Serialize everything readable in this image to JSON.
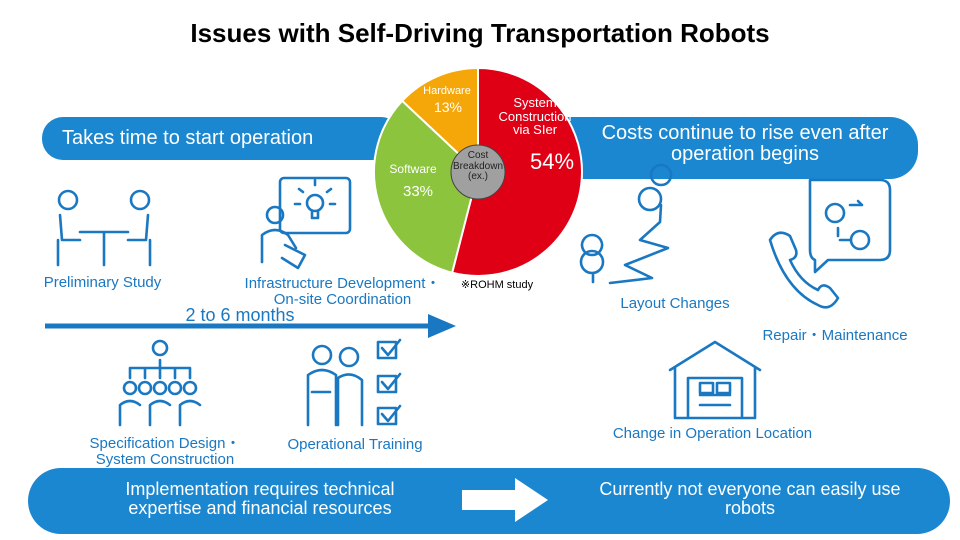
{
  "title": "Issues with Self-Driving Transportation Robots",
  "left_banner": "Takes time to start operation",
  "right_banner": "Costs continue to rise even after operation begins",
  "left_steps": [
    "Preliminary Study",
    "Infrastructure Development・On-site Coordination",
    "Specification Design・System Construction",
    "Operational Training"
  ],
  "duration": "2 to 6 months",
  "right_items": [
    "Layout Changes",
    "Repair・Maintenance",
    "Change in Operation Location"
  ],
  "bottom": {
    "cause": "Implementation requires technical expertise and financial resources",
    "effect": "Currently not everyone can easily use robots"
  },
  "chart_data": {
    "type": "pie",
    "center_label": "Cost Breakdown (ex.)",
    "note": "※ROHM study",
    "categories": [
      "System Construction via SIer",
      "Software",
      "Hardware"
    ],
    "values": [
      54,
      33,
      13
    ],
    "value_labels": [
      "54%",
      "33%",
      "13%"
    ],
    "colors": [
      "#e00016",
      "#8cc43e",
      "#f5a70a"
    ]
  }
}
